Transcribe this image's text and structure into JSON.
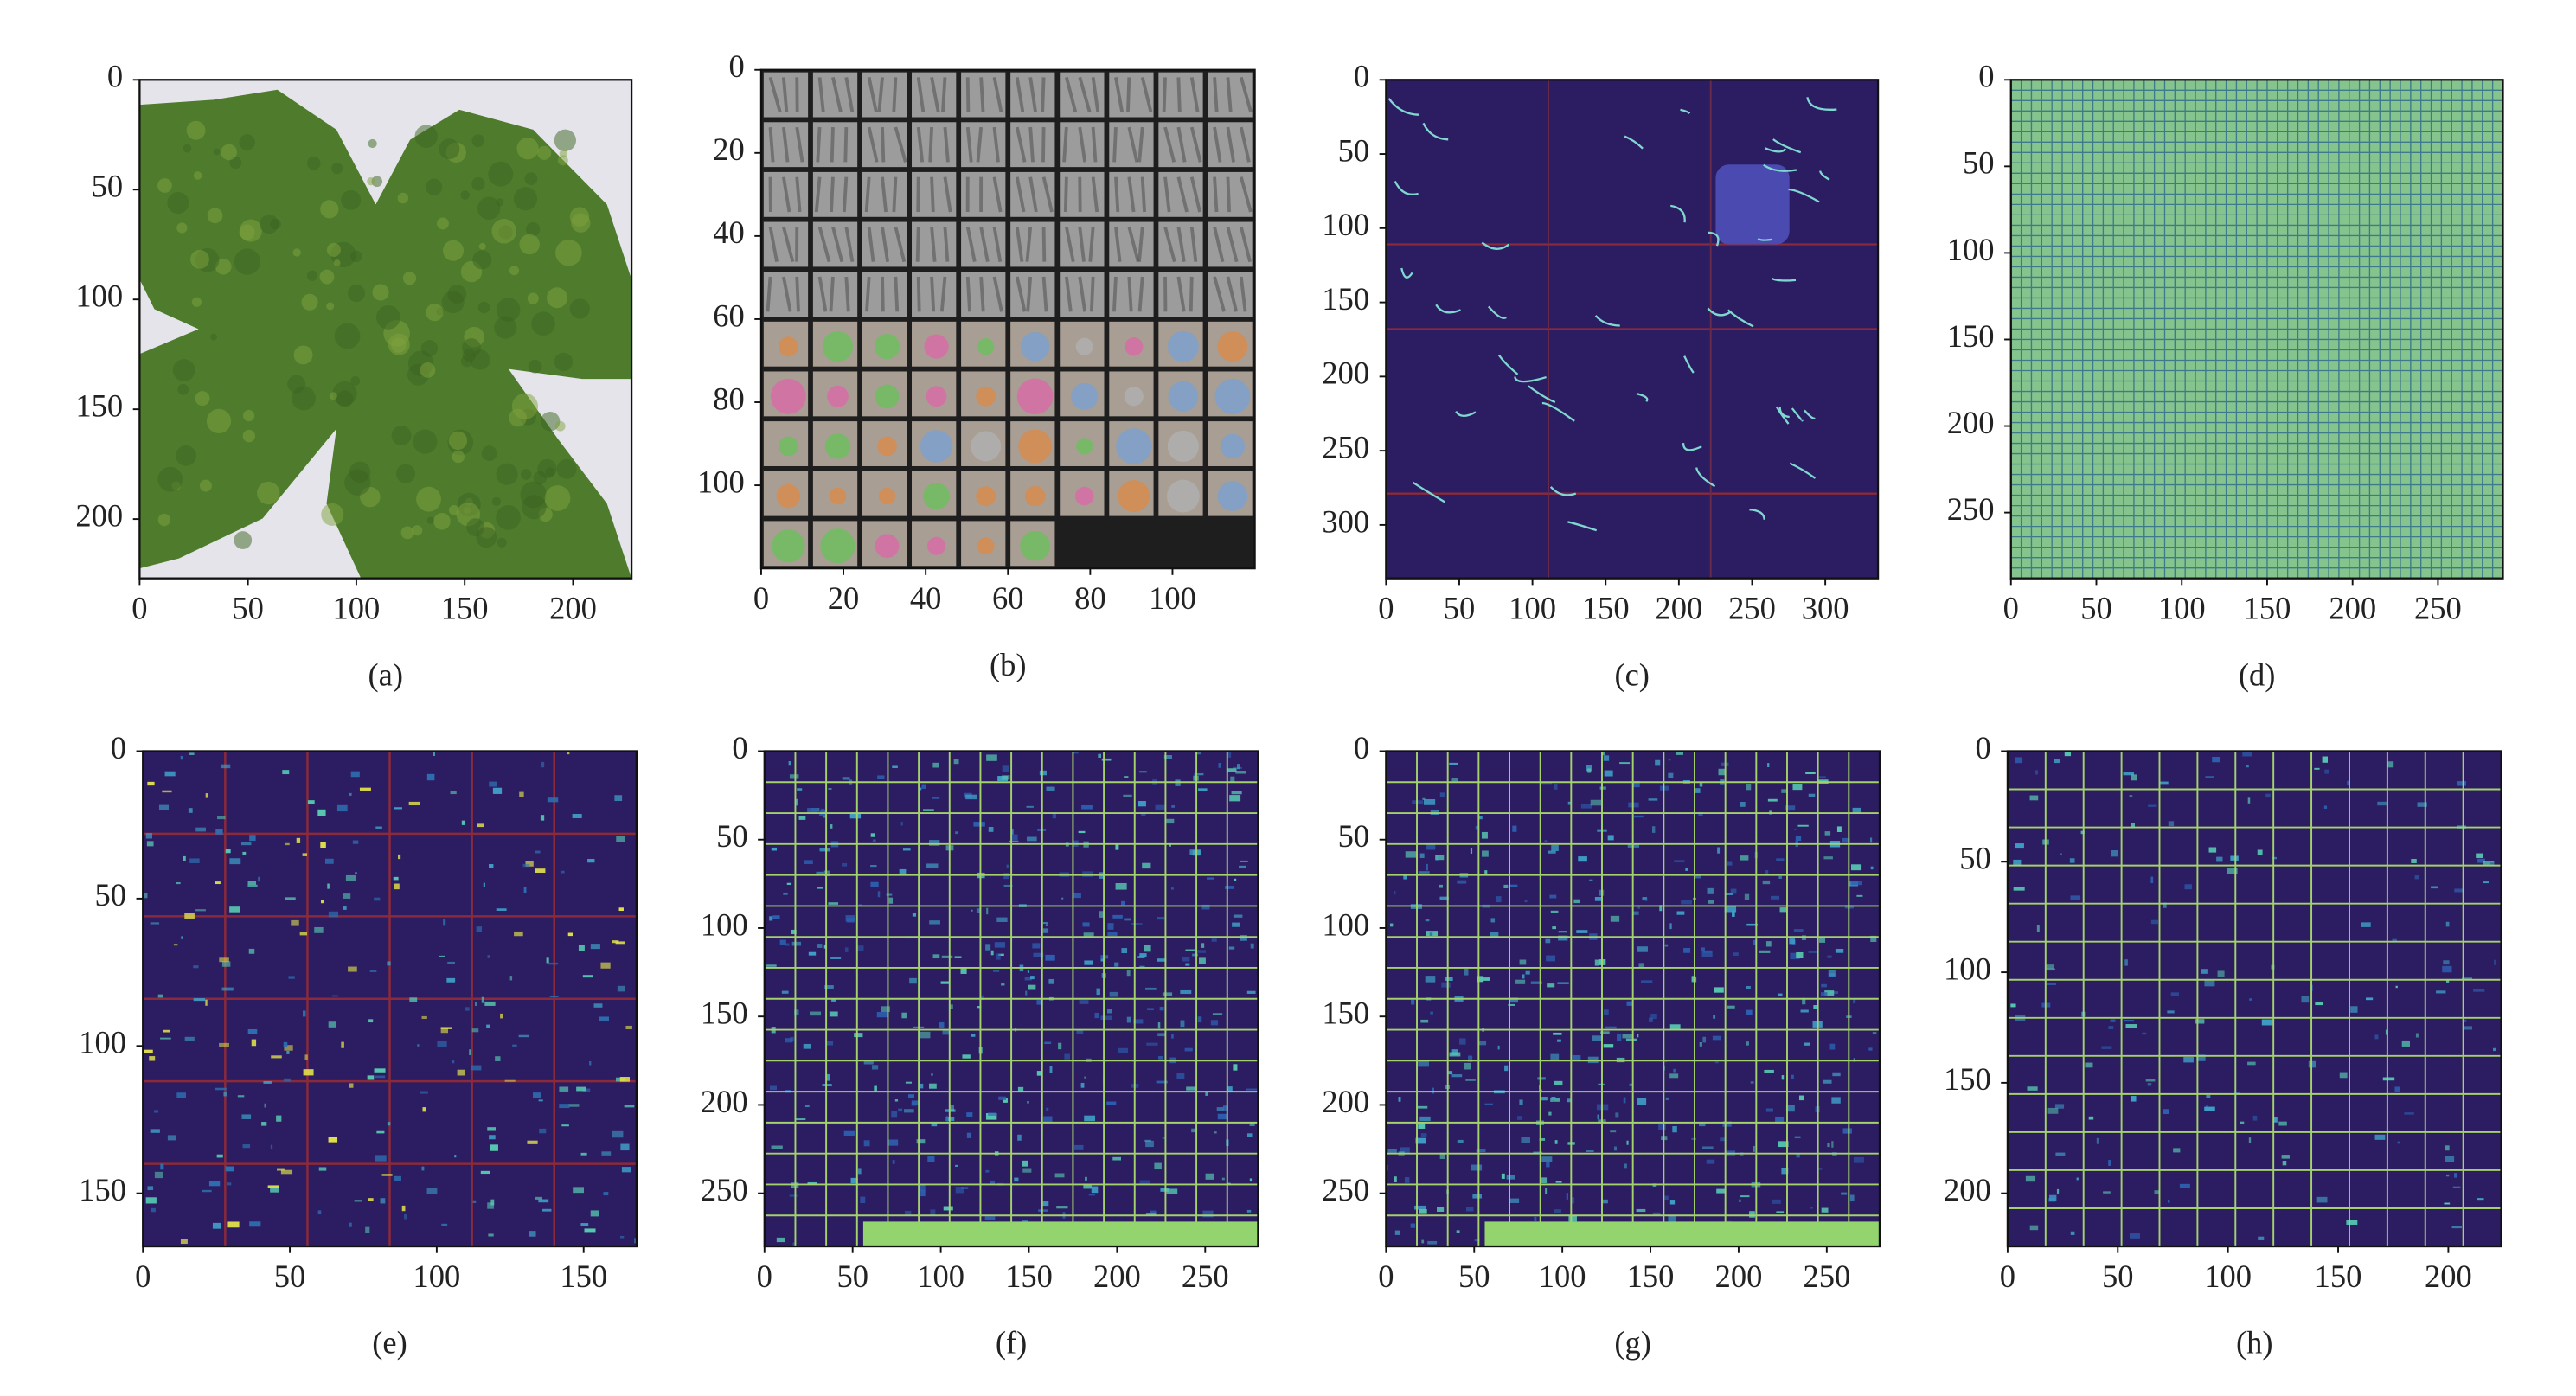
{
  "chart_data": [
    {
      "type": "image",
      "caption": "(a)",
      "xlim": [
        0,
        227
      ],
      "ylim": [
        227,
        0
      ],
      "xticks": [
        0,
        50,
        100,
        150,
        200
      ],
      "yticks": [
        0,
        50,
        100,
        150,
        200
      ]
    },
    {
      "type": "image",
      "caption": "(b)",
      "xlim": [
        0,
        120
      ],
      "ylim": [
        120,
        0
      ],
      "xticks": [
        0,
        20,
        40,
        60,
        80,
        100
      ],
      "yticks": [
        0,
        20,
        40,
        60,
        80,
        100
      ]
    },
    {
      "type": "image",
      "caption": "(c)",
      "xlim": [
        0,
        336
      ],
      "ylim": [
        336,
        0
      ],
      "xticks": [
        0,
        50,
        100,
        150,
        200,
        250,
        300
      ],
      "yticks": [
        0,
        50,
        100,
        150,
        200,
        250,
        300
      ]
    },
    {
      "type": "image",
      "caption": "(d)",
      "xlim": [
        0,
        288
      ],
      "ylim": [
        288,
        0
      ],
      "xticks": [
        0,
        50,
        100,
        150,
        200,
        250
      ],
      "yticks": [
        0,
        50,
        100,
        150,
        200,
        250
      ]
    },
    {
      "type": "image",
      "caption": "(e)",
      "xlim": [
        0,
        168
      ],
      "ylim": [
        168,
        0
      ],
      "xticks": [
        0,
        50,
        100,
        150
      ],
      "yticks": [
        0,
        50,
        100,
        150
      ]
    },
    {
      "type": "image",
      "caption": "(f)",
      "xlim": [
        0,
        280
      ],
      "ylim": [
        280,
        0
      ],
      "xticks": [
        0,
        50,
        100,
        150,
        200,
        250
      ],
      "yticks": [
        0,
        50,
        100,
        150,
        200,
        250
      ]
    },
    {
      "type": "image",
      "caption": "(g)",
      "xlim": [
        0,
        280
      ],
      "ylim": [
        280,
        0
      ],
      "xticks": [
        0,
        50,
        100,
        150,
        200,
        250
      ],
      "yticks": [
        0,
        50,
        100,
        150,
        200,
        250
      ]
    },
    {
      "type": "image",
      "caption": "(h)",
      "xlim": [
        0,
        224
      ],
      "ylim": [
        224,
        0
      ],
      "xticks": [
        0,
        50,
        100,
        150,
        200
      ],
      "yticks": [
        0,
        50,
        100,
        150,
        200
      ]
    }
  ]
}
